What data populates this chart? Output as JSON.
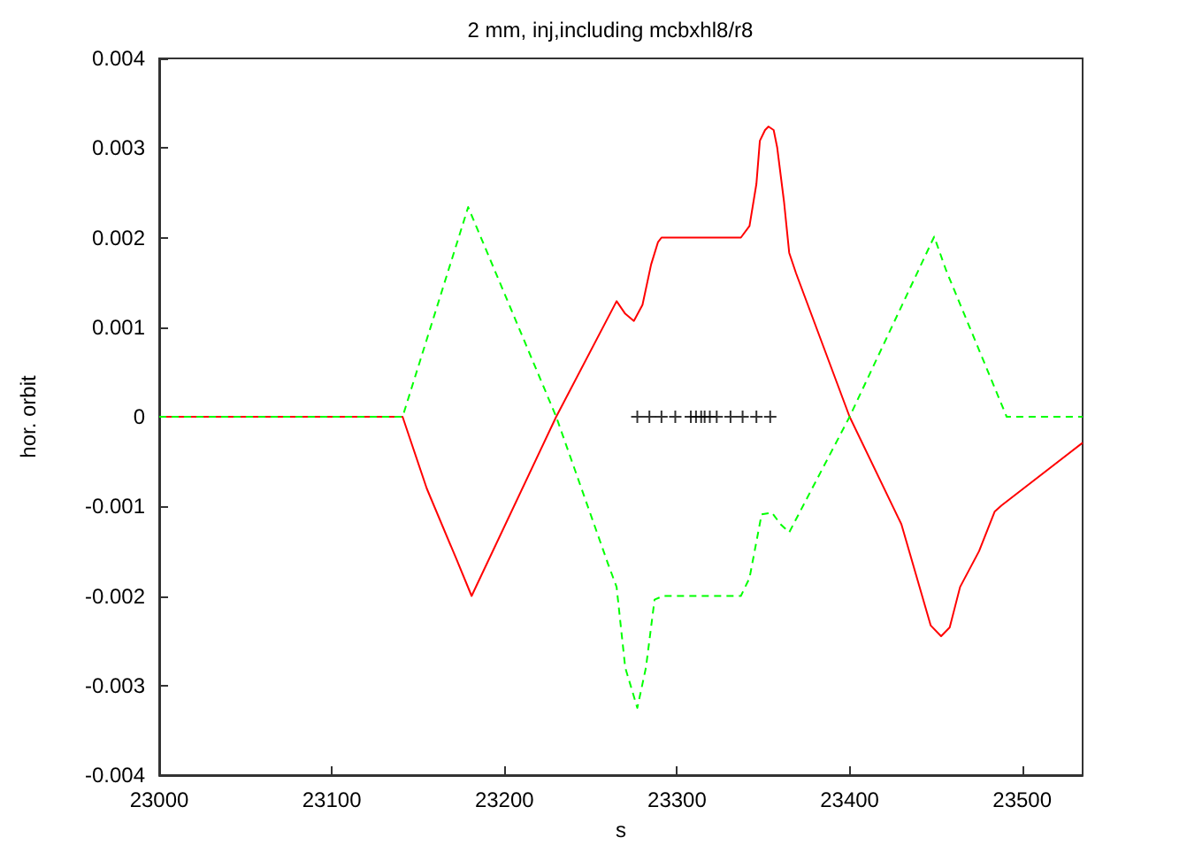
{
  "chart_data": {
    "type": "line",
    "title": "2 mm, inj,including mcbxhl8/r8",
    "xlabel": "s",
    "ylabel": "hor. orbit",
    "xlim": [
      23000,
      23535
    ],
    "xticks": [
      23000,
      23100,
      23200,
      23300,
      23400,
      23500
    ],
    "ylim": [
      -0.004,
      0.004
    ],
    "yticks": [
      -0.004,
      -0.003,
      -0.002,
      -0.001,
      0,
      0.001,
      0.002,
      0.003,
      0.004
    ],
    "grid": false,
    "series": [
      {
        "color": "#ff0000",
        "line_style": "solid",
        "marker": "none",
        "x": [
          23000,
          23141,
          23155,
          23172,
          23181,
          23230,
          23265,
          23270,
          23275,
          23280,
          23285,
          23289,
          23291,
          23337,
          23342,
          23346,
          23348,
          23351,
          23353,
          23356,
          23358,
          23362,
          23365,
          23369,
          23400,
          23430,
          23447,
          23453,
          23458,
          23464,
          23475,
          23484,
          23488,
          23535
        ],
        "values": [
          0,
          0,
          -0.0008,
          -0.00158,
          -0.002,
          0,
          0.00129,
          0.00115,
          0.00107,
          0.00125,
          0.0017,
          0.00195,
          0.002,
          0.002,
          0.00213,
          0.0026,
          0.00308,
          0.0032,
          0.00324,
          0.0032,
          0.00301,
          0.0024,
          0.00183,
          0.0016,
          0,
          -0.0012,
          -0.00233,
          -0.00245,
          -0.00235,
          -0.0019,
          -0.0015,
          -0.00106,
          -0.00099,
          -0.00029
        ]
      },
      {
        "color": "#00ff00",
        "line_style": "dashed",
        "marker": "none",
        "x": [
          23000,
          23141,
          23179,
          23230,
          23260,
          23265,
          23270,
          23277,
          23282,
          23287,
          23292,
          23337,
          23342,
          23349,
          23355,
          23360,
          23365,
          23400,
          23449,
          23456,
          23491,
          23535
        ],
        "values": [
          0,
          0,
          0.00234,
          0,
          -0.00164,
          -0.0019,
          -0.0028,
          -0.00325,
          -0.0028,
          -0.00204,
          -0.002,
          -0.002,
          -0.0018,
          -0.00109,
          -0.00107,
          -0.0012,
          -0.00129,
          0,
          0.00201,
          0.00163,
          0,
          0
        ]
      },
      {
        "type": "scatter",
        "color": "#000000",
        "marker": "cross",
        "x": [
          23277,
          23284,
          23291,
          23299,
          23308,
          23311,
          23314,
          23316,
          23319,
          23323,
          23331,
          23338,
          23346,
          23354
        ],
        "values": [
          0,
          0,
          0,
          0,
          0,
          0,
          0,
          0,
          0,
          0,
          0,
          0,
          0,
          0
        ]
      }
    ]
  }
}
